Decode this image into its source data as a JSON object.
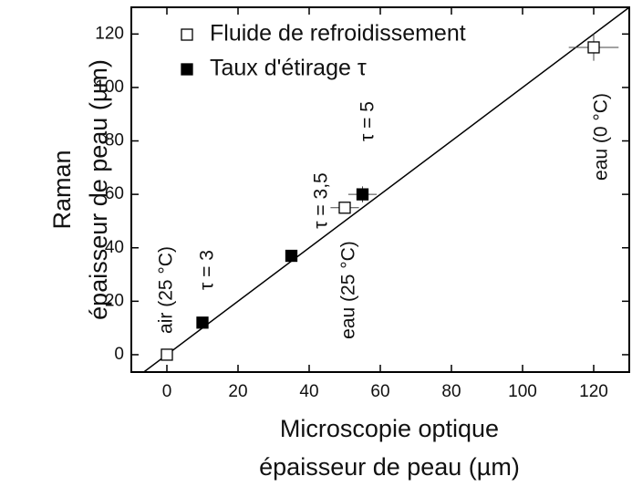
{
  "chart_data": {
    "type": "scatter",
    "xlabel": [
      "Microscopie optique",
      "épaisseur de peau (µm)"
    ],
    "ylabel": [
      "Raman",
      "épaisseur de peau (µm)"
    ],
    "xlim": [
      -10,
      130
    ],
    "ylim": [
      -6.5,
      130
    ],
    "xticks": [
      0,
      20,
      40,
      60,
      80,
      100,
      120
    ],
    "yticks": [
      0,
      20,
      40,
      60,
      80,
      100,
      120
    ],
    "legend": "upper left",
    "series": [
      {
        "name": "Fluide de refroidissement",
        "color": "#ffffff",
        "x": [
          0,
          50,
          120
        ],
        "values": [
          0,
          55,
          115
        ],
        "xerr": [
          0,
          4,
          7
        ],
        "yerr": [
          0,
          2,
          5
        ]
      },
      {
        "name": "Taux d'étirage τ",
        "color": "#000000",
        "x": [
          10,
          35,
          55
        ],
        "values": [
          12,
          37,
          60
        ],
        "xerr": [
          0,
          1.5,
          4
        ],
        "yerr": [
          0,
          1.5,
          3
        ]
      }
    ],
    "fit_line": {
      "x": [
        -10,
        130
      ],
      "y": [
        -10,
        130
      ]
    },
    "annotations": [
      "air (25 °C)",
      "τ = 3",
      "τ = 3,5",
      "τ = 5",
      "eau (25 °C)",
      "eau (0 °C)"
    ]
  }
}
